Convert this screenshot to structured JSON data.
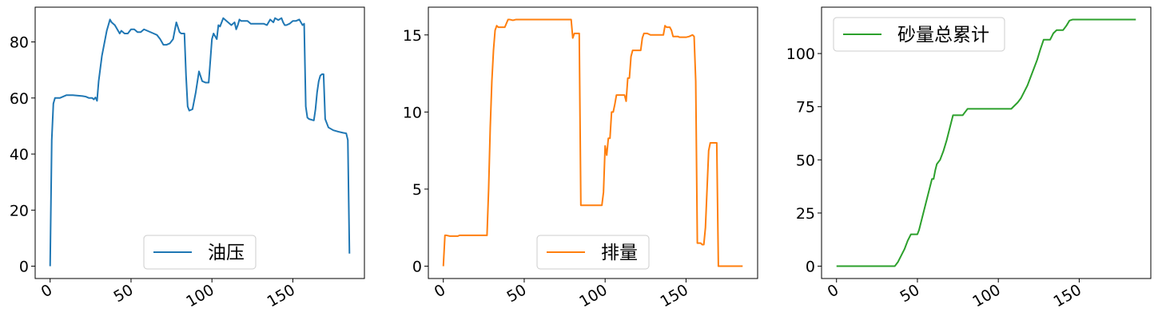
{
  "chart_data": [
    {
      "type": "line",
      "title": "",
      "xlabel": "",
      "ylabel": "",
      "xlim": [
        -9.25,
        194.25
      ],
      "ylim": [
        -4.4,
        92.4
      ],
      "xticks": [
        0,
        50,
        100,
        150
      ],
      "xtick_labels": [
        "0",
        "50",
        "100",
        "150"
      ],
      "yticks": [
        0,
        20,
        40,
        60,
        80
      ],
      "ytick_labels": [
        "0",
        "20",
        "40",
        "60",
        "80"
      ],
      "legend": {
        "placement": "lower center",
        "entries": [
          "油压"
        ]
      },
      "grid": false,
      "series": [
        {
          "name": "油压",
          "color": "#1f77b4",
          "x": [
            0,
            1,
            2,
            3,
            4,
            6,
            8,
            10,
            14,
            18,
            20,
            22,
            24,
            26,
            27,
            28,
            29,
            30,
            32,
            34,
            35,
            36,
            37,
            38,
            39,
            40,
            41,
            43,
            44,
            46,
            48,
            50,
            52,
            54,
            56,
            58,
            60,
            62,
            64,
            66,
            68,
            70,
            72,
            74,
            76,
            78,
            80,
            81,
            83,
            84,
            85,
            86,
            88,
            90,
            92,
            94,
            96,
            98,
            100,
            101,
            103,
            104,
            105,
            106,
            107,
            108,
            110,
            112,
            114,
            115,
            116,
            117,
            118,
            120,
            122,
            124,
            126,
            128,
            130,
            132,
            134,
            136,
            138,
            139,
            141,
            143,
            144,
            145,
            146,
            148,
            150,
            152,
            154,
            155,
            156,
            157,
            158,
            159,
            160,
            163,
            164,
            165,
            166,
            167,
            168,
            169,
            170,
            172,
            175,
            178,
            181,
            182,
            183,
            184,
            185
          ],
          "values": [
            0,
            45,
            58,
            60,
            60,
            60,
            60.5,
            61,
            61,
            60.8,
            60.7,
            60.5,
            60,
            60,
            59.5,
            60.2,
            59,
            66,
            75,
            81,
            84,
            86,
            88,
            87,
            86.5,
            86,
            85,
            83,
            84,
            83,
            83,
            84.5,
            84.5,
            83.5,
            83.5,
            84.5,
            84,
            83.5,
            83,
            82.5,
            81,
            79,
            79,
            79.5,
            81,
            87,
            83.5,
            83,
            83,
            68,
            57,
            55.5,
            56,
            62,
            69.5,
            66,
            65.5,
            65.5,
            81,
            83,
            81,
            86,
            85.5,
            87,
            88.5,
            88,
            87,
            86,
            87,
            84.5,
            86,
            88,
            87.5,
            87.5,
            87.5,
            86.5,
            86.5,
            86.5,
            86.5,
            86.5,
            86,
            88,
            87,
            88.5,
            87.8,
            88.5,
            87,
            86,
            86,
            86.5,
            87.5,
            87.5,
            88,
            87,
            86,
            86.5,
            57,
            53,
            52.5,
            52,
            56,
            62,
            66,
            68,
            68.5,
            68.5,
            52.5,
            49.5,
            48.5,
            48,
            47.6,
            47.5,
            47.4,
            45,
            4.5
          ]
        }
      ]
    },
    {
      "type": "line",
      "title": "",
      "xlabel": "",
      "ylabel": "",
      "xlim": [
        -9.25,
        194.25
      ],
      "ylim": [
        -0.8,
        16.8
      ],
      "xticks": [
        0,
        50,
        100,
        150
      ],
      "xtick_labels": [
        "0",
        "50",
        "100",
        "150"
      ],
      "yticks": [
        0,
        5,
        10,
        15
      ],
      "ytick_labels": [
        "0",
        "5",
        "10",
        "15"
      ],
      "legend": {
        "placement": "lower center",
        "entries": [
          "排量"
        ]
      },
      "grid": false,
      "series": [
        {
          "name": "排量",
          "color": "#ff7f0e",
          "x": [
            0,
            1,
            2,
            4,
            6,
            8,
            9,
            10,
            12,
            15,
            20,
            24,
            27,
            28,
            29,
            30,
            31,
            32,
            33,
            34,
            35,
            36,
            37,
            38,
            40,
            41,
            43,
            45,
            48,
            52,
            56,
            60,
            65,
            70,
            75,
            78,
            79,
            80,
            81,
            82,
            83,
            84,
            85,
            86,
            88,
            90,
            92,
            94,
            96,
            98,
            99,
            100,
            101,
            102,
            103,
            104,
            105,
            106,
            107,
            108,
            110,
            112,
            113,
            114,
            115,
            116,
            117,
            118,
            120,
            122,
            123,
            124,
            126,
            128,
            130,
            132,
            134,
            136,
            137,
            138,
            139,
            140,
            141,
            142,
            143,
            144,
            145,
            146,
            148,
            150,
            152,
            154,
            155,
            156,
            157,
            158,
            159,
            160,
            161,
            162,
            163,
            164,
            165,
            166,
            167,
            168,
            169,
            170,
            172,
            175,
            178,
            180,
            182,
            184,
            185
          ],
          "values": [
            0,
            2,
            2,
            1.95,
            1.95,
            1.95,
            1.95,
            2,
            2,
            2,
            2,
            2,
            2,
            5,
            9,
            12,
            14,
            15.3,
            15.6,
            15.5,
            15.5,
            15.5,
            15.5,
            15.5,
            16,
            16,
            15.95,
            16,
            16,
            16,
            16,
            16,
            16,
            16,
            16,
            16,
            16,
            14.8,
            15.1,
            15.1,
            15.1,
            15.1,
            3.95,
            3.95,
            3.95,
            3.95,
            3.95,
            3.95,
            3.95,
            3.95,
            4.8,
            7.8,
            7.2,
            8.3,
            8.3,
            10,
            10,
            10.5,
            11.1,
            11.1,
            11.1,
            11.1,
            10.7,
            12.2,
            12.2,
            13.6,
            14,
            14,
            14,
            14,
            14.8,
            15.1,
            15.1,
            15,
            15,
            15,
            15,
            15,
            15.6,
            15.5,
            15.5,
            15.5,
            15.3,
            14.9,
            14.9,
            14.9,
            14.9,
            14.85,
            14.85,
            14.85,
            14.9,
            15,
            14.9,
            12,
            1.5,
            1.5,
            1.5,
            1.4,
            1.4,
            2.5,
            5,
            7.5,
            8,
            8,
            8,
            8,
            8,
            0,
            0,
            0,
            0,
            0,
            0,
            0,
            0
          ]
        }
      ]
    },
    {
      "type": "line",
      "title": "",
      "xlabel": "",
      "ylabel": "",
      "xlim": [
        -9.25,
        194.25
      ],
      "ylim": [
        -5.8,
        121.8
      ],
      "xticks": [
        0,
        50,
        100,
        150
      ],
      "xtick_labels": [
        "0",
        "50",
        "100",
        "150"
      ],
      "yticks": [
        0,
        25,
        50,
        75,
        100
      ],
      "ytick_labels": [
        "0",
        "25",
        "50",
        "75",
        "100"
      ],
      "legend": {
        "placement": "upper left",
        "entries": [
          "砂量总累计"
        ]
      },
      "grid": false,
      "series": [
        {
          "name": "砂量总累计",
          "color": "#2ca02c",
          "x": [
            0,
            10,
            20,
            30,
            36,
            38,
            40,
            42,
            44,
            46,
            48,
            50,
            51,
            53,
            55,
            57,
            59,
            60,
            61,
            62,
            64,
            66,
            68,
            70,
            72,
            74,
            76,
            78,
            79,
            81,
            83,
            84,
            86,
            88,
            90,
            95,
            100,
            105,
            108,
            110,
            112,
            114,
            116,
            118,
            120,
            122,
            124,
            126,
            128,
            130,
            132,
            134,
            136,
            138,
            140,
            142,
            144,
            146,
            148,
            150,
            155,
            160,
            170,
            180,
            185
          ],
          "values": [
            0,
            0,
            0,
            0,
            0,
            2,
            5,
            8,
            12,
            15,
            15,
            15,
            17,
            23,
            29,
            35,
            41,
            41,
            45,
            48,
            50,
            54,
            59,
            65,
            71,
            71,
            71,
            71,
            72,
            74,
            74,
            74,
            74,
            74,
            74,
            74,
            74,
            74,
            74,
            75.5,
            77,
            79,
            82,
            85,
            89,
            93,
            97,
            102,
            106.5,
            106.5,
            106.5,
            109.5,
            111,
            111,
            111,
            113,
            115.5,
            116,
            116,
            116,
            116,
            116,
            116,
            116,
            116
          ]
        }
      ]
    }
  ]
}
